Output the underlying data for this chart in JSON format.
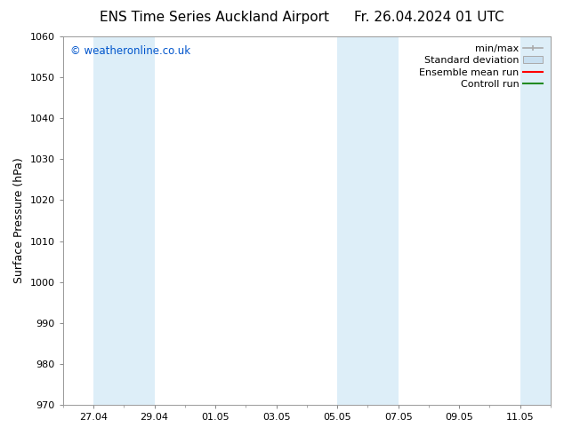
{
  "title_left": "ENS Time Series Auckland Airport",
  "title_right": "Fr. 26.04.2024 01 UTC",
  "ylabel": "Surface Pressure (hPa)",
  "ylim": [
    970,
    1060
  ],
  "yticks": [
    970,
    980,
    990,
    1000,
    1010,
    1020,
    1030,
    1040,
    1050,
    1060
  ],
  "xtick_labels": [
    "27.04",
    "29.04",
    "01.05",
    "03.05",
    "05.05",
    "07.05",
    "09.05",
    "11.05"
  ],
  "xtick_days": [
    1,
    3,
    5,
    7,
    9,
    11,
    13,
    15
  ],
  "total_days": 16,
  "watermark": "© weatheronline.co.uk",
  "watermark_color": "#0055cc",
  "bg_color": "#ffffff",
  "band_color": "#ddeef8",
  "band_ranges": [
    [
      1,
      3
    ],
    [
      9,
      11
    ],
    [
      15,
      16
    ]
  ],
  "legend_entries": [
    {
      "label": "min/max",
      "color": "#aaaaaa",
      "type": "errorbar"
    },
    {
      "label": "Standard deviation",
      "color": "#c8dff0",
      "type": "rect"
    },
    {
      "label": "Ensemble mean run",
      "color": "#ff0000",
      "type": "line"
    },
    {
      "label": "Controll run",
      "color": "#008000",
      "type": "line"
    }
  ],
  "title_fontsize": 11,
  "axis_label_fontsize": 9,
  "tick_fontsize": 8,
  "legend_fontsize": 8,
  "watermark_fontsize": 8.5
}
